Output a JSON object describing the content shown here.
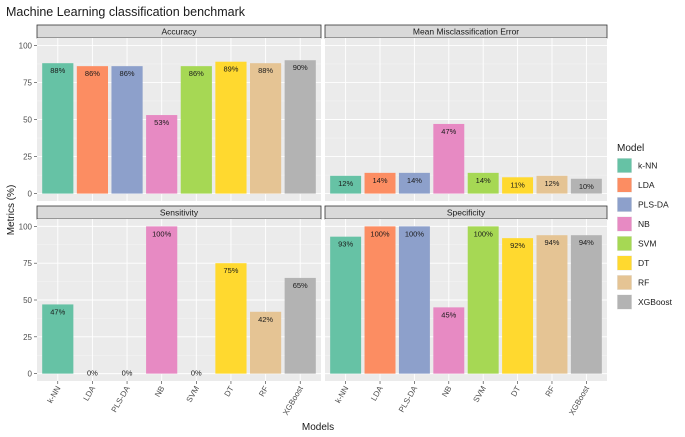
{
  "chart_data": {
    "type": "bar",
    "title": "Machine Learning classification benchmark",
    "xlabel": "Models",
    "ylabel": "Metrics (%)",
    "ylim": [
      0,
      100
    ],
    "yticks": [
      0,
      25,
      50,
      75,
      100
    ],
    "categories": [
      "k-NN",
      "LDA",
      "PLS-DA",
      "NB",
      "SVM",
      "DT",
      "RF",
      "XGBoost"
    ],
    "colors": [
      "#66c2a5",
      "#fc8d62",
      "#8da0cb",
      "#e78ac3",
      "#a6d854",
      "#ffd92f",
      "#e5c494",
      "#b3b3b3"
    ],
    "legend": {
      "title": "Model",
      "items": [
        "k-NN",
        "LDA",
        "PLS-DA",
        "NB",
        "SVM",
        "DT",
        "RF",
        "XGBoost"
      ]
    },
    "facets": [
      {
        "name": "Accuracy",
        "values": [
          88,
          86,
          86,
          53,
          86,
          89,
          88,
          90
        ],
        "labels": [
          "88%",
          "86%",
          "86%",
          "53%",
          "86%",
          "89%",
          "88%",
          "90%"
        ]
      },
      {
        "name": "Mean Misclassification Error",
        "values": [
          12,
          14,
          14,
          47,
          14,
          11,
          12,
          10
        ],
        "labels": [
          "12%",
          "14%",
          "14%",
          "47%",
          "14%",
          "11%",
          "12%",
          "10%"
        ]
      },
      {
        "name": "Sensitivity",
        "values": [
          47,
          0,
          0,
          100,
          0,
          75,
          42,
          65
        ],
        "labels": [
          "47%",
          "0%",
          "0%",
          "100%",
          "0%",
          "75%",
          "42%",
          "65%"
        ]
      },
      {
        "name": "Specificity",
        "values": [
          93,
          100,
          100,
          45,
          100,
          92,
          94,
          94
        ],
        "labels": [
          "93%",
          "100%",
          "100%",
          "45%",
          "100%",
          "92%",
          "94%",
          "94%"
        ]
      }
    ]
  }
}
